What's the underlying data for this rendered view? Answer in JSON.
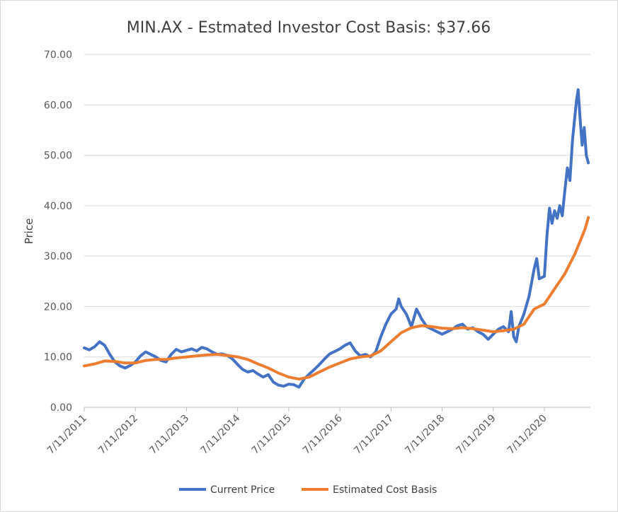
{
  "chart_data": {
    "type": "line",
    "title": "MIN.AX - Estmated Investor Cost Basis:  $37.66",
    "xlabel": "",
    "ylabel": "Price",
    "ylim": [
      0,
      70
    ],
    "y_ticks": [
      "0.00",
      "10.00",
      "20.00",
      "30.00",
      "40.00",
      "50.00",
      "60.00",
      "70.00"
    ],
    "x_ticks": [
      "7/11/2011",
      "7/11/2012",
      "7/11/2013",
      "7/11/2014",
      "7/11/2015",
      "7/11/2016",
      "7/11/2017",
      "7/11/2018",
      "7/11/2019",
      "7/11/2020"
    ],
    "x_range": [
      2011.0,
      2020.9
    ],
    "grid": true,
    "legend": "bottom",
    "series": [
      {
        "name": "Current Price",
        "color": "#4472C4",
        "points": [
          [
            2011.0,
            11.8
          ],
          [
            2011.1,
            11.4
          ],
          [
            2011.2,
            12.0
          ],
          [
            2011.3,
            13.0
          ],
          [
            2011.4,
            12.3
          ],
          [
            2011.5,
            10.5
          ],
          [
            2011.6,
            9.0
          ],
          [
            2011.7,
            8.2
          ],
          [
            2011.8,
            7.8
          ],
          [
            2011.9,
            8.3
          ],
          [
            2012.0,
            9.0
          ],
          [
            2012.1,
            10.2
          ],
          [
            2012.2,
            11.0
          ],
          [
            2012.3,
            10.5
          ],
          [
            2012.4,
            10.0
          ],
          [
            2012.5,
            9.3
          ],
          [
            2012.6,
            9.0
          ],
          [
            2012.7,
            10.5
          ],
          [
            2012.8,
            11.5
          ],
          [
            2012.9,
            11.0
          ],
          [
            2013.0,
            11.3
          ],
          [
            2013.1,
            11.6
          ],
          [
            2013.2,
            11.2
          ],
          [
            2013.3,
            11.9
          ],
          [
            2013.4,
            11.6
          ],
          [
            2013.5,
            11.0
          ],
          [
            2013.6,
            10.5
          ],
          [
            2013.7,
            10.6
          ],
          [
            2013.8,
            10.3
          ],
          [
            2013.9,
            9.6
          ],
          [
            2014.0,
            8.5
          ],
          [
            2014.1,
            7.5
          ],
          [
            2014.2,
            7.0
          ],
          [
            2014.3,
            7.3
          ],
          [
            2014.4,
            6.6
          ],
          [
            2014.5,
            6.0
          ],
          [
            2014.6,
            6.5
          ],
          [
            2014.7,
            5.0
          ],
          [
            2014.8,
            4.4
          ],
          [
            2014.9,
            4.2
          ],
          [
            2015.0,
            4.6
          ],
          [
            2015.1,
            4.5
          ],
          [
            2015.2,
            4.0
          ],
          [
            2015.3,
            5.6
          ],
          [
            2015.4,
            6.6
          ],
          [
            2015.5,
            7.5
          ],
          [
            2015.6,
            8.5
          ],
          [
            2015.7,
            9.6
          ],
          [
            2015.8,
            10.6
          ],
          [
            2015.9,
            11.1
          ],
          [
            2016.0,
            11.6
          ],
          [
            2016.1,
            12.3
          ],
          [
            2016.2,
            12.8
          ],
          [
            2016.3,
            11.2
          ],
          [
            2016.4,
            10.2
          ],
          [
            2016.5,
            10.5
          ],
          [
            2016.6,
            10.0
          ],
          [
            2016.7,
            11.0
          ],
          [
            2016.8,
            14.0
          ],
          [
            2016.9,
            16.5
          ],
          [
            2017.0,
            18.5
          ],
          [
            2017.1,
            19.5
          ],
          [
            2017.15,
            21.5
          ],
          [
            2017.2,
            20.0
          ],
          [
            2017.3,
            18.5
          ],
          [
            2017.4,
            16.0
          ],
          [
            2017.5,
            19.5
          ],
          [
            2017.6,
            17.5
          ],
          [
            2017.7,
            16.0
          ],
          [
            2017.8,
            15.5
          ],
          [
            2017.9,
            15.0
          ],
          [
            2018.0,
            14.5
          ],
          [
            2018.1,
            15.0
          ],
          [
            2018.2,
            15.5
          ],
          [
            2018.3,
            16.2
          ],
          [
            2018.4,
            16.5
          ],
          [
            2018.5,
            15.5
          ],
          [
            2018.6,
            15.8
          ],
          [
            2018.7,
            15.0
          ],
          [
            2018.8,
            14.5
          ],
          [
            2018.9,
            13.5
          ],
          [
            2019.0,
            14.5
          ],
          [
            2019.1,
            15.5
          ],
          [
            2019.2,
            16.0
          ],
          [
            2019.3,
            15.0
          ],
          [
            2019.35,
            19.0
          ],
          [
            2019.4,
            14.0
          ],
          [
            2019.45,
            13.0
          ],
          [
            2019.5,
            16.0
          ],
          [
            2019.6,
            18.5
          ],
          [
            2019.7,
            22.0
          ],
          [
            2019.8,
            27.5
          ],
          [
            2019.85,
            29.5
          ],
          [
            2019.9,
            25.5
          ],
          [
            2020.0,
            26.0
          ],
          [
            2020.05,
            34.0
          ],
          [
            2020.1,
            39.5
          ],
          [
            2020.15,
            36.5
          ],
          [
            2020.2,
            39.0
          ],
          [
            2020.25,
            37.5
          ],
          [
            2020.3,
            40.0
          ],
          [
            2020.35,
            38.0
          ],
          [
            2020.4,
            43.0
          ],
          [
            2020.45,
            47.5
          ],
          [
            2020.5,
            45.0
          ],
          [
            2020.55,
            53.0
          ],
          [
            2020.6,
            58.0
          ],
          [
            2020.63,
            61.0
          ],
          [
            2020.66,
            63.0
          ],
          [
            2020.7,
            57.0
          ],
          [
            2020.74,
            52.0
          ],
          [
            2020.78,
            55.5
          ],
          [
            2020.82,
            50.0
          ],
          [
            2020.86,
            48.5
          ]
        ]
      },
      {
        "name": "Estimated Cost Basis",
        "color": "#ED7D31",
        "points": [
          [
            2011.0,
            8.2
          ],
          [
            2011.2,
            8.6
          ],
          [
            2011.4,
            9.2
          ],
          [
            2011.6,
            9.1
          ],
          [
            2011.8,
            8.8
          ],
          [
            2012.0,
            8.8
          ],
          [
            2012.2,
            9.3
          ],
          [
            2012.4,
            9.5
          ],
          [
            2012.6,
            9.5
          ],
          [
            2012.8,
            9.8
          ],
          [
            2013.0,
            10.0
          ],
          [
            2013.2,
            10.2
          ],
          [
            2013.4,
            10.4
          ],
          [
            2013.6,
            10.5
          ],
          [
            2013.8,
            10.3
          ],
          [
            2014.0,
            10.0
          ],
          [
            2014.2,
            9.5
          ],
          [
            2014.4,
            8.6
          ],
          [
            2014.6,
            7.8
          ],
          [
            2014.8,
            6.8
          ],
          [
            2015.0,
            6.0
          ],
          [
            2015.2,
            5.6
          ],
          [
            2015.4,
            6.0
          ],
          [
            2015.6,
            7.0
          ],
          [
            2015.8,
            8.0
          ],
          [
            2016.0,
            8.8
          ],
          [
            2016.2,
            9.6
          ],
          [
            2016.4,
            10.0
          ],
          [
            2016.6,
            10.2
          ],
          [
            2016.8,
            11.2
          ],
          [
            2017.0,
            13.0
          ],
          [
            2017.2,
            14.8
          ],
          [
            2017.4,
            15.8
          ],
          [
            2017.6,
            16.2
          ],
          [
            2017.8,
            16.0
          ],
          [
            2018.0,
            15.7
          ],
          [
            2018.2,
            15.6
          ],
          [
            2018.4,
            15.8
          ],
          [
            2018.6,
            15.6
          ],
          [
            2018.8,
            15.3
          ],
          [
            2019.0,
            15.0
          ],
          [
            2019.2,
            15.2
          ],
          [
            2019.4,
            15.5
          ],
          [
            2019.6,
            16.5
          ],
          [
            2019.8,
            19.5
          ],
          [
            2020.0,
            20.5
          ],
          [
            2020.2,
            23.5
          ],
          [
            2020.4,
            26.5
          ],
          [
            2020.6,
            30.5
          ],
          [
            2020.7,
            33.0
          ],
          [
            2020.8,
            35.5
          ],
          [
            2020.86,
            37.66
          ]
        ]
      }
    ]
  }
}
